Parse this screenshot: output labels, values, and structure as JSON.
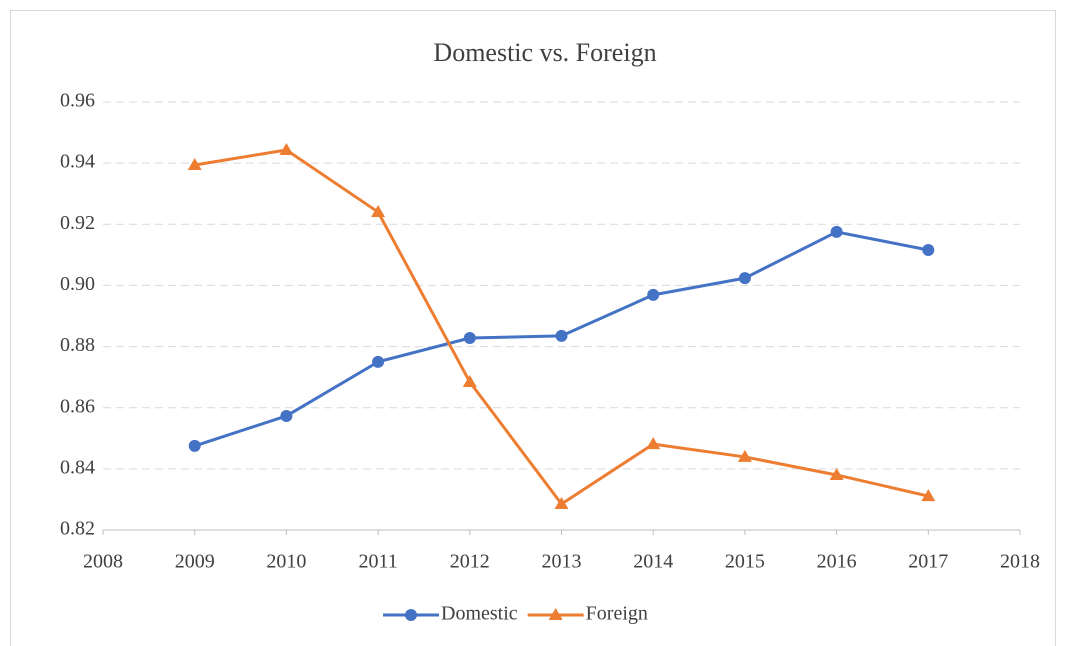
{
  "chart_data": {
    "type": "line",
    "title": "Domestic vs. Foreign",
    "x": [
      2009,
      2010,
      2011,
      2012,
      2013,
      2014,
      2015,
      2016,
      2017
    ],
    "series": [
      {
        "name": "Domestic",
        "color": "#4472c4",
        "marker": "circle",
        "values": [
          0.8475,
          0.8573,
          0.875,
          0.8828,
          0.8835,
          0.8969,
          0.9024,
          0.9175,
          0.9116
        ]
      },
      {
        "name": "Foreign",
        "color": "#ed7d31",
        "marker": "triangle",
        "values": [
          0.9394,
          0.9443,
          0.924,
          0.8684,
          0.8285,
          0.8481,
          0.8439,
          0.838,
          0.8311
        ]
      }
    ],
    "xlim": [
      2008,
      2018
    ],
    "xticks": [
      2008,
      2009,
      2010,
      2011,
      2012,
      2013,
      2014,
      2015,
      2016,
      2017,
      2018
    ],
    "ylim": [
      0.82,
      0.96
    ],
    "yticks": [
      0.82,
      0.84,
      0.86,
      0.88,
      {
        "value": 0.9,
        "label": "0.90"
      },
      0.92,
      0.94,
      0.96
    ],
    "grid": true,
    "legend": "bottom"
  }
}
